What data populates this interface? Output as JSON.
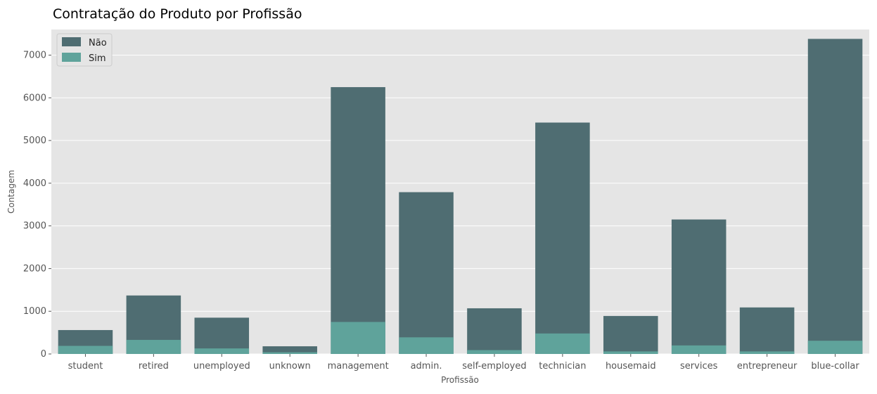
{
  "chart_data": {
    "type": "bar",
    "title": "Contratação do Produto por Profissão",
    "xlabel": "Profissão",
    "ylabel": "Contagem",
    "ylim": [
      0,
      7600
    ],
    "yticks": [
      0,
      1000,
      2000,
      3000,
      4000,
      5000,
      6000,
      7000
    ],
    "grid": true,
    "overlapping_bars": true,
    "legend_position": "top-left",
    "categories": [
      "student",
      "retired",
      "unemployed",
      "unknown",
      "management",
      "admin.",
      "self-employed",
      "technician",
      "housemaid",
      "services",
      "entrepreneur",
      "blue-collar"
    ],
    "series": [
      {
        "name": "Não",
        "color": "#4f6d72",
        "values": [
          560,
          1370,
          850,
          180,
          6250,
          3790,
          1070,
          5420,
          890,
          3150,
          1090,
          7380
        ]
      },
      {
        "name": "Sim",
        "color": "#5fa39b",
        "values": [
          190,
          330,
          130,
          40,
          750,
          390,
          90,
          480,
          60,
          200,
          60,
          310
        ]
      }
    ]
  }
}
